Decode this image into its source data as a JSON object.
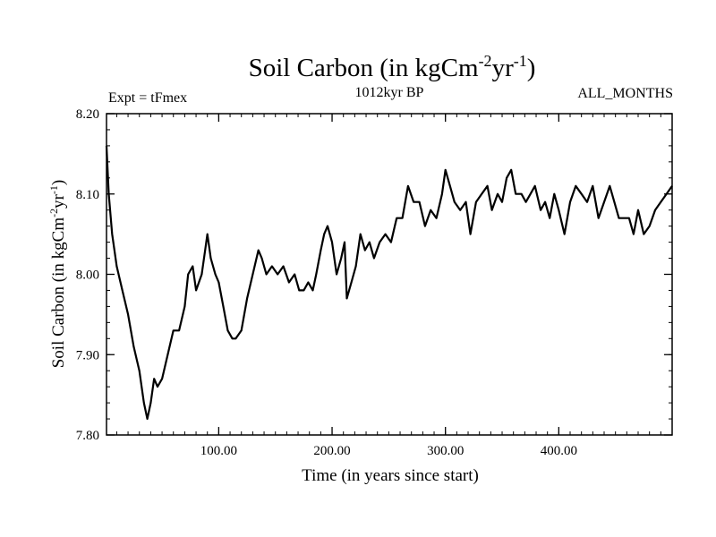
{
  "chart_data": {
    "type": "line",
    "title": "Soil Carbon (in kgCm",
    "title_sup1": "-2",
    "title_mid": "yr",
    "title_sup2": "-1",
    "title_end": ")",
    "subtitle_left": "Expt = tFmex",
    "subtitle_center": "1012kyr BP",
    "subtitle_right": "ALL_MONTHS",
    "xlabel": "Time (in years since start)",
    "ylabel": "Soil Carbon (in kgCm",
    "ylabel_sup1": "-2",
    "ylabel_mid": "yr",
    "ylabel_sup2": "-1",
    "ylabel_end": ")",
    "xlim": [
      1,
      500
    ],
    "ylim": [
      7.8,
      8.2
    ],
    "x_ticks": [
      100,
      200,
      300,
      400
    ],
    "x_tick_labels": [
      "100.00",
      "200.00",
      "300.00",
      "400.00"
    ],
    "y_ticks": [
      7.8,
      7.9,
      8.0,
      8.1,
      8.2
    ],
    "y_tick_labels": [
      "7.80",
      "7.90",
      "8.00",
      "8.10",
      "8.20"
    ],
    "x_minor_step": 10,
    "y_minor_step": 0.02,
    "line_color": "#000000",
    "series": [
      {
        "name": "Soil Carbon",
        "x": [
          1,
          3,
          6,
          10,
          15,
          20,
          25,
          30,
          34,
          37,
          40,
          43,
          46,
          50,
          55,
          60,
          65,
          70,
          73,
          77,
          80,
          85,
          88,
          90,
          93,
          97,
          100,
          104,
          108,
          112,
          115,
          120,
          125,
          130,
          135,
          138,
          142,
          147,
          152,
          157,
          162,
          167,
          171,
          175,
          179,
          183,
          186,
          190,
          193,
          196,
          200,
          204,
          208,
          211,
          213,
          217,
          221,
          225,
          229,
          233,
          237,
          242,
          247,
          252,
          257,
          262,
          267,
          272,
          277,
          282,
          287,
          292,
          297,
          300,
          304,
          308,
          313,
          318,
          322,
          327,
          332,
          337,
          341,
          346,
          350,
          354,
          358,
          362,
          367,
          371,
          375,
          379,
          384,
          388,
          392,
          396,
          400,
          405,
          410,
          415,
          420,
          425,
          430,
          435,
          440,
          445,
          449,
          453,
          457,
          462,
          466,
          470,
          475,
          480,
          485,
          490,
          495,
          500
        ],
        "y": [
          8.16,
          8.1,
          8.05,
          8.01,
          7.98,
          7.95,
          7.91,
          7.88,
          7.84,
          7.82,
          7.84,
          7.87,
          7.86,
          7.87,
          7.9,
          7.93,
          7.93,
          7.96,
          8.0,
          8.01,
          7.98,
          8.0,
          8.03,
          8.05,
          8.02,
          8.0,
          7.99,
          7.96,
          7.93,
          7.92,
          7.92,
          7.93,
          7.97,
          8.0,
          8.03,
          8.02,
          8.0,
          8.01,
          8.0,
          8.01,
          7.99,
          8.0,
          7.98,
          7.98,
          7.99,
          7.98,
          8.0,
          8.03,
          8.05,
          8.06,
          8.04,
          8.0,
          8.02,
          8.04,
          7.97,
          7.99,
          8.01,
          8.05,
          8.03,
          8.04,
          8.02,
          8.04,
          8.05,
          8.04,
          8.07,
          8.07,
          8.11,
          8.09,
          8.09,
          8.06,
          8.08,
          8.07,
          8.1,
          8.13,
          8.11,
          8.09,
          8.08,
          8.09,
          8.05,
          8.09,
          8.1,
          8.11,
          8.08,
          8.1,
          8.09,
          8.12,
          8.13,
          8.1,
          8.1,
          8.09,
          8.1,
          8.11,
          8.08,
          8.09,
          8.07,
          8.1,
          8.08,
          8.05,
          8.09,
          8.11,
          8.1,
          8.09,
          8.11,
          8.07,
          8.09,
          8.11,
          8.09,
          8.07,
          8.07,
          8.07,
          8.05,
          8.08,
          8.05,
          8.06,
          8.08,
          8.09,
          8.1,
          8.11
        ]
      }
    ]
  }
}
